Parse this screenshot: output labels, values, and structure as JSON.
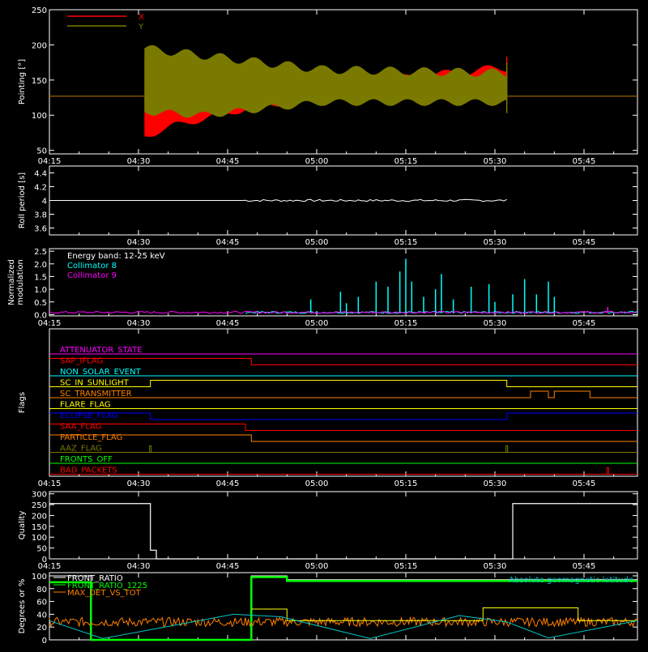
{
  "time_axis": {
    "ticks": [
      "04:15",
      "04:30",
      "04:45",
      "05:00",
      "05:15",
      "05:30",
      "05:45"
    ],
    "start": "04:15",
    "end": "05:54"
  },
  "chart_data": [
    {
      "id": "pointing",
      "type": "line",
      "ylabel": "Pointing [°]",
      "ylim": [
        45,
        250
      ],
      "yticks": [
        50,
        100,
        150,
        200,
        250
      ],
      "legend": {
        "placement": "top-left"
      },
      "series": [
        {
          "name": "X",
          "color": "#ff0000",
          "baseline": 127,
          "active_start": "04:31",
          "active_end": "05:32",
          "envelope_upper": [
            [
              0,
              180
            ],
            [
              2,
              170
            ],
            [
              10,
              160
            ],
            [
              30,
              140
            ],
            [
              61,
              168
            ]
          ],
          "envelope_lower": [
            [
              0,
              70
            ],
            [
              5,
              85
            ],
            [
              20,
              115
            ],
            [
              40,
              132
            ],
            [
              61,
              133
            ]
          ]
        },
        {
          "name": "Y",
          "color": "#7a7a00",
          "baseline": 127,
          "active_start": "04:31",
          "active_end": "05:32",
          "envelope_upper": [
            [
              0,
              195
            ],
            [
              10,
              185
            ],
            [
              30,
              165
            ],
            [
              61,
              160
            ]
          ],
          "envelope_lower": [
            [
              0,
              105
            ],
            [
              10,
              100
            ],
            [
              30,
              118
            ],
            [
              61,
              118
            ]
          ]
        }
      ]
    },
    {
      "id": "roll-period",
      "type": "line",
      "ylabel": "Roll period [s]",
      "ylim": [
        3.5,
        4.5
      ],
      "yticks": [
        3.6,
        3.8,
        4.0,
        4.2,
        4.4
      ],
      "series": [
        {
          "name": "",
          "color": "#ffffff",
          "value": 4.0,
          "start": "04:15",
          "end": "05:32"
        }
      ]
    },
    {
      "id": "modulation",
      "type": "line",
      "ylabel": "Normalized modulation",
      "ylim": [
        -0.05,
        2.6
      ],
      "yticks": [
        "0.0",
        "0.5",
        "1.0",
        "1.5",
        "2.0",
        "2.5"
      ],
      "legend_text": [
        "Energy band: 12-25 keV",
        "Collimator 8",
        "Collimator 9"
      ],
      "series": [
        {
          "name": "Collimator 8",
          "color": "#00ffff",
          "spikes": [
            [
              "04:59",
              0.6
            ],
            [
              "05:04",
              0.9
            ],
            [
              "05:05",
              0.45
            ],
            [
              "05:07",
              0.7
            ],
            [
              "05:10",
              1.3
            ],
            [
              "05:12",
              1.1
            ],
            [
              "05:14",
              1.7
            ],
            [
              "05:15",
              2.2
            ],
            [
              "05:16",
              1.3
            ],
            [
              "05:18",
              0.7
            ],
            [
              "05:20",
              1.0
            ],
            [
              "05:21",
              1.6
            ],
            [
              "05:23",
              0.6
            ],
            [
              "05:26",
              1.1
            ],
            [
              "05:29",
              1.2
            ],
            [
              "05:30",
              0.5
            ],
            [
              "05:33",
              0.8
            ],
            [
              "05:35",
              1.4
            ],
            [
              "05:37",
              0.8
            ],
            [
              "05:39",
              1.3
            ],
            [
              "05:40",
              0.7
            ]
          ]
        },
        {
          "name": "Collimator 9",
          "color": "#ff00ff",
          "spikes": [
            [
              "05:49",
              0.3
            ]
          ]
        }
      ]
    },
    {
      "id": "flags",
      "type": "line",
      "ylabel": "Flags",
      "series": [
        {
          "name": "ATTENUATOR_STATE",
          "color": "#ff00ff",
          "steps": [
            [
              "04:15",
              0
            ]
          ]
        },
        {
          "name": "SAP_IFLAG",
          "color": "#ff0000",
          "steps": [
            [
              "04:15",
              1
            ],
            [
              "04:49",
              0
            ]
          ]
        },
        {
          "name": "NON_SOLAR_EVENT",
          "color": "#00ffff",
          "steps": [
            [
              "04:15",
              0
            ]
          ]
        },
        {
          "name": "SC_IN_SUNLIGHT",
          "color": "#ffff00",
          "steps": [
            [
              "04:15",
              0
            ],
            [
              "04:32",
              1
            ],
            [
              "05:32",
              0
            ]
          ]
        },
        {
          "name": "SC_TRANSMITTER",
          "color": "#ff8000",
          "steps": [
            [
              "04:15",
              0
            ],
            [
              "05:36",
              1
            ],
            [
              "05:39",
              0
            ],
            [
              "05:40",
              1
            ],
            [
              "05:46",
              0
            ]
          ]
        },
        {
          "name": "FLARE_FLAG",
          "color": "#ffff00",
          "steps": [
            [
              "04:15",
              0
            ]
          ]
        },
        {
          "name": "ECLIPSE_FLAG",
          "color": "#0000ff",
          "steps": [
            [
              "04:15",
              1
            ],
            [
              "04:32",
              0
            ],
            [
              "05:32",
              1
            ]
          ]
        },
        {
          "name": "SAA_FLAG",
          "color": "#ff0000",
          "steps": [
            [
              "04:15",
              1
            ],
            [
              "04:48",
              0
            ]
          ]
        },
        {
          "name": "PARTICLE_FLAG",
          "color": "#ff8000",
          "steps": [
            [
              "04:15",
              1
            ],
            [
              "04:49",
              0
            ]
          ]
        },
        {
          "name": "AAZ_FLAG",
          "color": "#7a7a00",
          "steps": [
            [
              "04:15",
              0
            ]
          ],
          "pulses": [
            "04:32",
            "05:32"
          ]
        },
        {
          "name": "FRONTS_OFF",
          "color": "#00ff00",
          "steps": [
            [
              "04:15",
              0
            ]
          ]
        },
        {
          "name": "BAD_PACKETS",
          "color": "#ff0000",
          "steps": [
            [
              "04:15",
              0
            ]
          ],
          "pulses": [
            "05:49"
          ]
        }
      ]
    },
    {
      "id": "quality",
      "type": "line",
      "ylabel": "Quality",
      "ylim": [
        0,
        310
      ],
      "yticks": [
        0,
        50,
        100,
        150,
        200,
        250,
        300
      ],
      "series": [
        {
          "name": "",
          "color": "#ffffff",
          "steps": [
            [
              "04:15",
              255
            ],
            [
              "04:32",
              40
            ],
            [
              "04:33",
              0
            ],
            [
              "05:33",
              255
            ]
          ]
        }
      ]
    },
    {
      "id": "degrees",
      "type": "line",
      "ylabel": "Degrees or %",
      "ylim": [
        0,
        105
      ],
      "yticks": [
        0,
        20,
        40,
        60,
        80,
        100
      ],
      "legend_text": [
        "FRONT_RATIO",
        "FRONT_RATIO_1225",
        "MAX_DET_VS_TOT"
      ],
      "annotation": "Absolute geomagnetic latitude",
      "series": [
        {
          "name": "FRONT_RATIO",
          "color": "#ffffff",
          "steps": [
            [
              "04:15",
              100
            ],
            [
              "04:22",
              0
            ],
            [
              "04:49",
              100
            ],
            [
              "04:55",
              94
            ]
          ]
        },
        {
          "name": "FRONT_RATIO_1225",
          "color": "#00ff00",
          "steps": [
            [
              "04:15",
              90
            ],
            [
              "04:22",
              0
            ],
            [
              "04:49",
              98
            ],
            [
              "04:55",
              92
            ]
          ]
        },
        {
          "name": "MAX_DET_VS_TOT",
          "color": "#ff8000",
          "level": 28,
          "start": "04:15",
          "end": "05:54"
        },
        {
          "name": "Yellow",
          "color": "#ffff00",
          "steps": [
            [
              "04:49",
              48
            ],
            [
              "04:55",
              30
            ],
            [
              "05:28",
              50
            ],
            [
              "05:44",
              30
            ]
          ]
        },
        {
          "name": "Absolute geomagnetic latitude",
          "color": "#00c8c8",
          "points": [
            [
              "04:15",
              30
            ],
            [
              "04:24",
              2
            ],
            [
              "04:46",
              40
            ],
            [
              "04:54",
              36
            ],
            [
              "05:09",
              2
            ],
            [
              "05:24",
              38
            ],
            [
              "05:32",
              28
            ],
            [
              "05:39",
              3
            ],
            [
              "05:54",
              30
            ]
          ]
        }
      ]
    }
  ]
}
